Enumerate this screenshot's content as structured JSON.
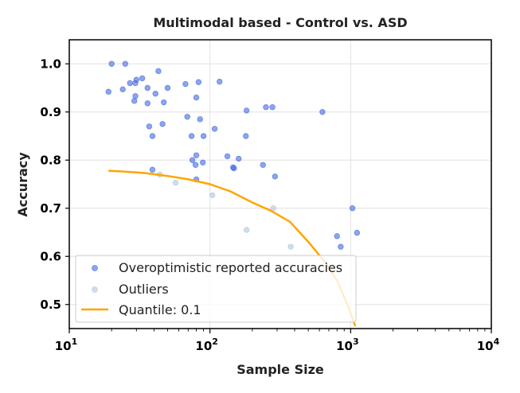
{
  "chart_data": {
    "type": "scatter",
    "title": "Multimodal based - Control vs. ASD",
    "xlabel": "Sample Size",
    "ylabel": "Accuracy",
    "xscale": "log",
    "xlim": [
      10,
      10000
    ],
    "ylim": [
      0.45,
      1.05
    ],
    "xticks": [
      {
        "value": 10,
        "base": "10",
        "exp": "1"
      },
      {
        "value": 100,
        "base": "10",
        "exp": "2"
      },
      {
        "value": 1000,
        "base": "10",
        "exp": "3"
      },
      {
        "value": 10000,
        "base": "10",
        "exp": "4"
      }
    ],
    "yticks": [
      {
        "value": 0.5,
        "label": "0.5"
      },
      {
        "value": 0.6,
        "label": "0.6"
      },
      {
        "value": 0.7,
        "label": "0.7"
      },
      {
        "value": 0.8,
        "label": "0.8"
      },
      {
        "value": 0.9,
        "label": "0.9"
      },
      {
        "value": 1.0,
        "label": "1.0"
      }
    ],
    "grid": true,
    "legend_position": "bottom-left",
    "colors": {
      "overoptimistic": "#4169e1",
      "outliers": "#b0c4de",
      "quantile": "#ffa500",
      "grid": "#e6e6e6",
      "axis": "#000000"
    },
    "series": [
      {
        "name": "Overoptimistic reported accuracies",
        "kind": "scatter",
        "points": [
          [
            19,
            0.942
          ],
          [
            20,
            1.0
          ],
          [
            24,
            0.947
          ],
          [
            25,
            1.0
          ],
          [
            27,
            0.96
          ],
          [
            29,
            0.923
          ],
          [
            29.5,
            0.933
          ],
          [
            29.5,
            0.96
          ],
          [
            30,
            0.967
          ],
          [
            33,
            0.97
          ],
          [
            36,
            0.95
          ],
          [
            36,
            0.918
          ],
          [
            37,
            0.87
          ],
          [
            39,
            0.85
          ],
          [
            39,
            0.78
          ],
          [
            41,
            0.938
          ],
          [
            43,
            0.985
          ],
          [
            46,
            0.875
          ],
          [
            47,
            0.92
          ],
          [
            50,
            0.95
          ],
          [
            67,
            0.958
          ],
          [
            69,
            0.89
          ],
          [
            74,
            0.85
          ],
          [
            75,
            0.8
          ],
          [
            79,
            0.79
          ],
          [
            80,
            0.81
          ],
          [
            80,
            0.93
          ],
          [
            80,
            0.76
          ],
          [
            83,
            0.962
          ],
          [
            85,
            0.885
          ],
          [
            89,
            0.795
          ],
          [
            90,
            0.85
          ],
          [
            108,
            0.865
          ],
          [
            117,
            0.963
          ],
          [
            133,
            0.808
          ],
          [
            146,
            0.785
          ],
          [
            148,
            0.783
          ],
          [
            160,
            0.803
          ],
          [
            180,
            0.85
          ],
          [
            182,
            0.903
          ],
          [
            238,
            0.79
          ],
          [
            250,
            0.91
          ],
          [
            278,
            0.91
          ],
          [
            290,
            0.766
          ],
          [
            630,
            0.9
          ],
          [
            800,
            0.642
          ],
          [
            850,
            0.62
          ],
          [
            1030,
            0.7
          ],
          [
            1110,
            0.649
          ]
        ]
      },
      {
        "name": "Outliers",
        "kind": "scatter",
        "points": [
          [
            44,
            0.77
          ],
          [
            57,
            0.753
          ],
          [
            104,
            0.727
          ],
          [
            182,
            0.655
          ],
          [
            282,
            0.7
          ],
          [
            375,
            0.62
          ]
        ]
      },
      {
        "name": "Quantile: 0.1",
        "kind": "line",
        "points": [
          [
            19,
            0.778
          ],
          [
            25,
            0.776
          ],
          [
            35,
            0.773
          ],
          [
            50,
            0.767
          ],
          [
            70,
            0.76
          ],
          [
            100,
            0.75
          ],
          [
            140,
            0.735
          ],
          [
            200,
            0.712
          ],
          [
            270,
            0.695
          ],
          [
            370,
            0.672
          ],
          [
            500,
            0.63
          ],
          [
            650,
            0.59
          ],
          [
            800,
            0.55
          ],
          [
            950,
            0.5
          ],
          [
            1080,
            0.455
          ]
        ]
      }
    ]
  }
}
